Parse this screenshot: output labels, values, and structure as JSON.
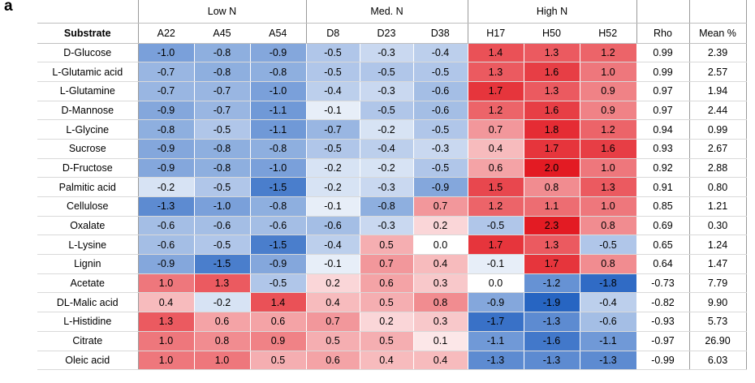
{
  "panel_label": "a",
  "chart_data": {
    "type": "heatmap",
    "row_header": "Substrate",
    "groups": [
      {
        "name": "Low N",
        "columns": [
          "A22",
          "A45",
          "A54"
        ]
      },
      {
        "name": "Med. N",
        "columns": [
          "D8",
          "D23",
          "D38"
        ]
      },
      {
        "name": "High N",
        "columns": [
          "H17",
          "H50",
          "H52"
        ]
      }
    ],
    "extra_columns": [
      "Rho",
      "Mean %"
    ],
    "color_scale": {
      "negative": "#1f5fc0",
      "zero": "#ffffff",
      "positive": "#e31b23",
      "min": -2.0,
      "max": 2.0
    },
    "rows": [
      {
        "substrate": "D-Glucose",
        "values": [
          "-1.0",
          "-0.8",
          "-0.9",
          "-0.5",
          "-0.3",
          "-0.4",
          "1.4",
          "1.3",
          "1.2"
        ],
        "rho": "0.99",
        "mean": "2.39"
      },
      {
        "substrate": "L-Glutamic acid",
        "values": [
          "-0.7",
          "-0.8",
          "-0.8",
          "-0.5",
          "-0.5",
          "-0.5",
          "1.3",
          "1.6",
          "1.0"
        ],
        "rho": "0.99",
        "mean": "2.57"
      },
      {
        "substrate": "L-Glutamine",
        "values": [
          "-0.7",
          "-0.7",
          "-1.0",
          "-0.4",
          "-0.3",
          "-0.6",
          "1.7",
          "1.3",
          "0.9"
        ],
        "rho": "0.97",
        "mean": "1.94"
      },
      {
        "substrate": "D-Mannose",
        "values": [
          "-0.9",
          "-0.7",
          "-1.1",
          "-0.1",
          "-0.5",
          "-0.6",
          "1.2",
          "1.6",
          "0.9"
        ],
        "rho": "0.97",
        "mean": "2.44"
      },
      {
        "substrate": "L-Glycine",
        "values": [
          "-0.8",
          "-0.5",
          "-1.1",
          "-0.7",
          "-0.2",
          "-0.5",
          "0.7",
          "1.8",
          "1.2"
        ],
        "rho": "0.94",
        "mean": "0.99"
      },
      {
        "substrate": "Sucrose",
        "values": [
          "-0.9",
          "-0.8",
          "-0.8",
          "-0.5",
          "-0.4",
          "-0.3",
          "0.4",
          "1.7",
          "1.6"
        ],
        "rho": "0.93",
        "mean": "2.67"
      },
      {
        "substrate": "D-Fructose",
        "values": [
          "-0.9",
          "-0.8",
          "-1.0",
          "-0.2",
          "-0.2",
          "-0.5",
          "0.6",
          "2.0",
          "1.0"
        ],
        "rho": "0.92",
        "mean": "2.88"
      },
      {
        "substrate": "Palmitic acid",
        "values": [
          "-0.2",
          "-0.5",
          "-1.5",
          "-0.2",
          "-0.3",
          "-0.9",
          "1.5",
          "0.8",
          "1.3"
        ],
        "rho": "0.91",
        "mean": "0.80"
      },
      {
        "substrate": "Cellulose",
        "values": [
          "-1.3",
          "-1.0",
          "-0.8",
          "-0.1",
          "-0.8",
          "0.7",
          "1.2",
          "1.1",
          "1.0"
        ],
        "rho": "0.85",
        "mean": "1.21"
      },
      {
        "substrate": "Oxalate",
        "values": [
          "-0.6",
          "-0.6",
          "-0.6",
          "-0.6",
          "-0.3",
          "0.2",
          "-0.5",
          "2.3",
          "0.8"
        ],
        "rho": "0.69",
        "mean": "0.30"
      },
      {
        "substrate": "L-Lysine",
        "values": [
          "-0.6",
          "-0.5",
          "-1.5",
          "-0.4",
          "0.5",
          "0.0",
          "1.7",
          "1.3",
          "-0.5"
        ],
        "rho": "0.65",
        "mean": "1.24"
      },
      {
        "substrate": "Lignin",
        "values": [
          "-0.9",
          "-1.5",
          "-0.9",
          "-0.1",
          "0.7",
          "0.4",
          "-0.1",
          "1.7",
          "0.8"
        ],
        "rho": "0.64",
        "mean": "1.47"
      },
      {
        "substrate": "Acetate",
        "values": [
          "1.0",
          "1.3",
          "-0.5",
          "0.2",
          "0.6",
          "0.3",
          "0.0",
          "-1.2",
          "-1.8"
        ],
        "rho": "-0.73",
        "mean": "7.79"
      },
      {
        "substrate": "DL-Malic acid",
        "values": [
          "0.4",
          "-0.2",
          "1.4",
          "0.4",
          "0.5",
          "0.8",
          "-0.9",
          "-1.9",
          "-0.4"
        ],
        "rho": "-0.82",
        "mean": "9.90"
      },
      {
        "substrate": "L-Histidine",
        "values": [
          "1.3",
          "0.6",
          "0.6",
          "0.7",
          "0.2",
          "0.3",
          "-1.7",
          "-1.3",
          "-0.6"
        ],
        "rho": "-0.93",
        "mean": "5.73"
      },
      {
        "substrate": "Citrate",
        "values": [
          "1.0",
          "0.8",
          "0.9",
          "0.5",
          "0.5",
          "0.1",
          "-1.1",
          "-1.6",
          "-1.1"
        ],
        "rho": "-0.97",
        "mean": "26.90"
      },
      {
        "substrate": "Oleic acid",
        "values": [
          "1.0",
          "1.0",
          "0.5",
          "0.6",
          "0.4",
          "0.4",
          "-1.3",
          "-1.3",
          "-1.3"
        ],
        "rho": "-0.99",
        "mean": "6.03"
      }
    ]
  }
}
